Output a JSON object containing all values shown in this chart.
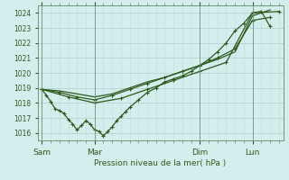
{
  "xlabel": "Pression niveau de la mer( hPa )",
  "ylim": [
    1015.5,
    1024.5
  ],
  "yticks": [
    1016,
    1017,
    1018,
    1019,
    1020,
    1021,
    1022,
    1023,
    1024
  ],
  "bg_color": "#d4eeee",
  "line_color": "#2d5a1b",
  "grid_color_minor": "#c0dede",
  "grid_color_major": "#b0cece",
  "xtick_labels": [
    "Sam",
    "Mar",
    "Dim",
    "Lun"
  ],
  "xtick_positions": [
    0,
    36,
    108,
    144
  ],
  "vline_positions": [
    0,
    36,
    108,
    144
  ],
  "xlim": [
    -3,
    165
  ],
  "line1_x": [
    0,
    3,
    6,
    9,
    12,
    15,
    18,
    21,
    24,
    27,
    30,
    33,
    36,
    39,
    42,
    45,
    48,
    51,
    54,
    57,
    60,
    66,
    72,
    78,
    84,
    90,
    96,
    102,
    108,
    114,
    120,
    126,
    132,
    138,
    144,
    150,
    156
  ],
  "line1_y": [
    1018.9,
    1018.5,
    1018.1,
    1017.6,
    1017.5,
    1017.3,
    1016.9,
    1016.6,
    1016.2,
    1016.5,
    1016.8,
    1016.6,
    1016.2,
    1016.1,
    1015.8,
    1016.1,
    1016.4,
    1016.8,
    1017.1,
    1017.4,
    1017.7,
    1018.2,
    1018.7,
    1019.0,
    1019.4,
    1019.6,
    1019.8,
    1020.1,
    1020.5,
    1020.9,
    1021.4,
    1022.0,
    1022.8,
    1023.3,
    1024.0,
    1024.1,
    1023.1
  ],
  "line2_x": [
    0,
    12,
    24,
    36,
    48,
    60,
    72,
    84,
    96,
    108,
    120,
    132,
    144,
    156
  ],
  "line2_y": [
    1018.9,
    1018.7,
    1018.4,
    1018.2,
    1018.5,
    1018.9,
    1019.3,
    1019.7,
    1020.1,
    1020.5,
    1021.0,
    1021.6,
    1023.5,
    1023.7
  ],
  "line3_x": [
    0,
    12,
    24,
    36,
    48,
    60,
    72,
    84,
    96,
    108,
    120,
    132,
    144,
    156
  ],
  "line3_y": [
    1018.9,
    1018.8,
    1018.6,
    1018.4,
    1018.6,
    1019.0,
    1019.4,
    1019.7,
    1020.1,
    1020.5,
    1020.9,
    1021.4,
    1023.8,
    1024.2
  ],
  "line4_x": [
    0,
    18,
    36,
    54,
    72,
    90,
    108,
    126,
    144,
    162
  ],
  "line4_y": [
    1018.9,
    1018.4,
    1018.0,
    1018.3,
    1018.9,
    1019.5,
    1020.1,
    1020.7,
    1024.0,
    1024.1
  ]
}
